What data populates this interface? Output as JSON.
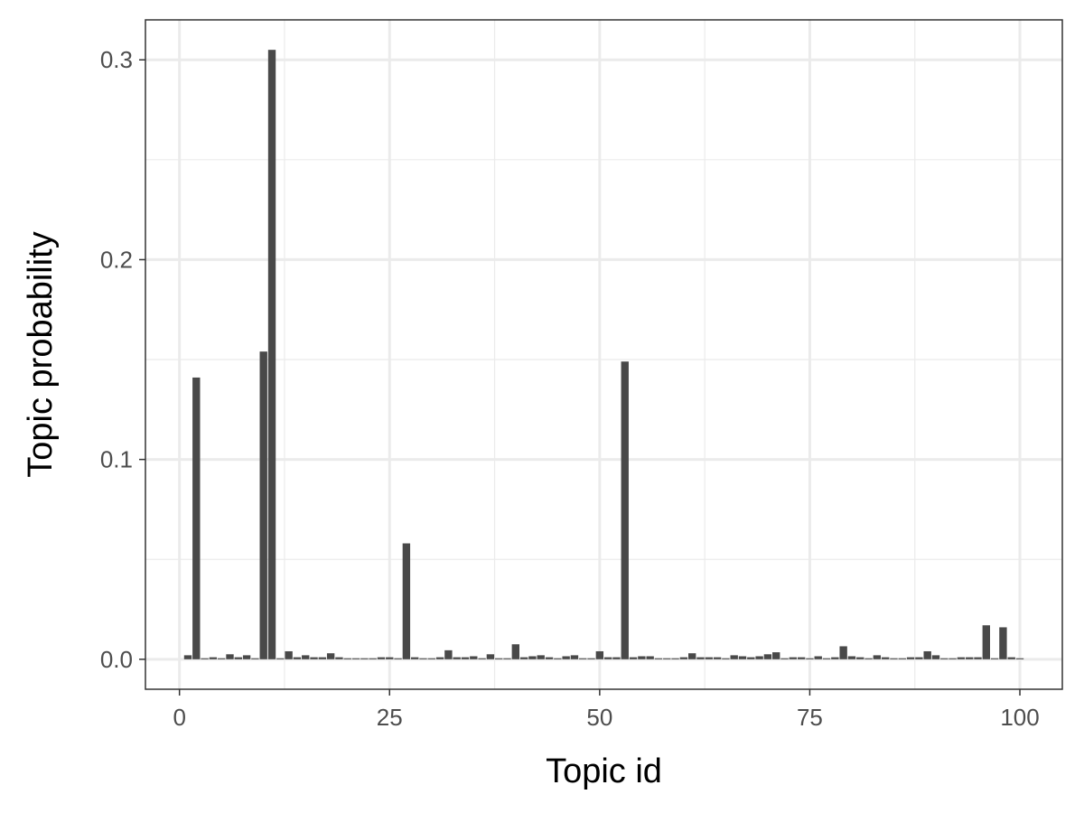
{
  "chart_data": {
    "type": "bar",
    "xlabel": "Topic id",
    "ylabel": "Topic probability",
    "xlim": [
      -4.05,
      105.05
    ],
    "ylim": [
      -0.015,
      0.32
    ],
    "x_ticks": [
      0,
      25,
      50,
      75,
      100
    ],
    "x_tick_labels": [
      "0",
      "25",
      "50",
      "75",
      "100"
    ],
    "y_ticks": [
      0.0,
      0.1,
      0.2,
      0.3
    ],
    "y_tick_labels": [
      "0.0",
      "0.1",
      "0.2",
      "0.3"
    ],
    "grid": true,
    "x": [
      1,
      2,
      3,
      4,
      5,
      6,
      7,
      8,
      9,
      10,
      11,
      12,
      13,
      14,
      15,
      16,
      17,
      18,
      19,
      20,
      21,
      22,
      23,
      24,
      25,
      26,
      27,
      28,
      29,
      30,
      31,
      32,
      33,
      34,
      35,
      36,
      37,
      38,
      39,
      40,
      41,
      42,
      43,
      44,
      45,
      46,
      47,
      48,
      49,
      50,
      51,
      52,
      53,
      54,
      55,
      56,
      57,
      58,
      59,
      60,
      61,
      62,
      63,
      64,
      65,
      66,
      67,
      68,
      69,
      70,
      71,
      72,
      73,
      74,
      75,
      76,
      77,
      78,
      79,
      80,
      81,
      82,
      83,
      84,
      85,
      86,
      87,
      88,
      89,
      90,
      91,
      92,
      93,
      94,
      95,
      96,
      97,
      98,
      99,
      100
    ],
    "values": [
      0.002,
      0.141,
      0.0005,
      0.001,
      0.0005,
      0.0025,
      0.001,
      0.002,
      0.0005,
      0.154,
      0.305,
      0.0005,
      0.004,
      0.001,
      0.002,
      0.001,
      0.001,
      0.003,
      0.001,
      0.0005,
      0.0005,
      0.0005,
      0.0005,
      0.001,
      0.001,
      0.0005,
      0.058,
      0.001,
      0.0005,
      0.0005,
      0.001,
      0.0045,
      0.001,
      0.001,
      0.0015,
      0.0005,
      0.0025,
      0.0005,
      0.0005,
      0.0075,
      0.001,
      0.0015,
      0.002,
      0.001,
      0.0005,
      0.0015,
      0.002,
      0.0005,
      0.0005,
      0.004,
      0.001,
      0.001,
      0.149,
      0.001,
      0.0015,
      0.0015,
      0.0005,
      0.0005,
      0.0005,
      0.001,
      0.003,
      0.001,
      0.001,
      0.001,
      0.0005,
      0.002,
      0.0015,
      0.001,
      0.0015,
      0.0025,
      0.0035,
      0.0005,
      0.001,
      0.001,
      0.0005,
      0.0015,
      0.0005,
      0.001,
      0.0065,
      0.0015,
      0.001,
      0.0005,
      0.002,
      0.001,
      0.0005,
      0.0005,
      0.001,
      0.001,
      0.004,
      0.002,
      0.0005,
      0.0005,
      0.001,
      0.001,
      0.001,
      0.017,
      0.0005,
      0.016,
      0.001,
      0.0005
    ],
    "bar_color": "#494949",
    "grid_color": "#ebebeb",
    "panel_border_color": "#333333"
  }
}
